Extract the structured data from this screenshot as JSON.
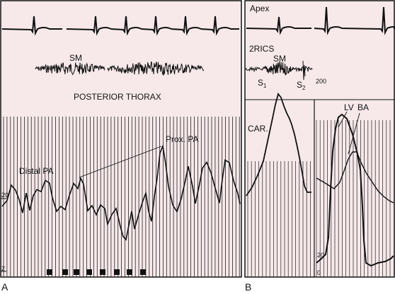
{
  "colors": {
    "panel_bg": "#f7e9ea",
    "trace": "#111111",
    "grid": "#222222"
  },
  "panel_a": {
    "letter": "A",
    "sm_label": "SM",
    "region_label": "POSTERIOR THORAX",
    "distal_label": "Distal PA",
    "prox_label": "Prox. PA",
    "scale_high": "20",
    "scale_low": "2"
  },
  "panel_b": {
    "letter": "B",
    "apex_label": "Apex",
    "rics_label": "2RICS",
    "sm_label": "SM",
    "s1_main": "S",
    "s1_sub": "1",
    "s2_main": "S",
    "s2_sub": "2",
    "car_label": "CAR.",
    "lv_label": "LV",
    "ba_label": "BA",
    "scale_200": "200",
    "scale_20": "20",
    "scale_0": "0"
  }
}
